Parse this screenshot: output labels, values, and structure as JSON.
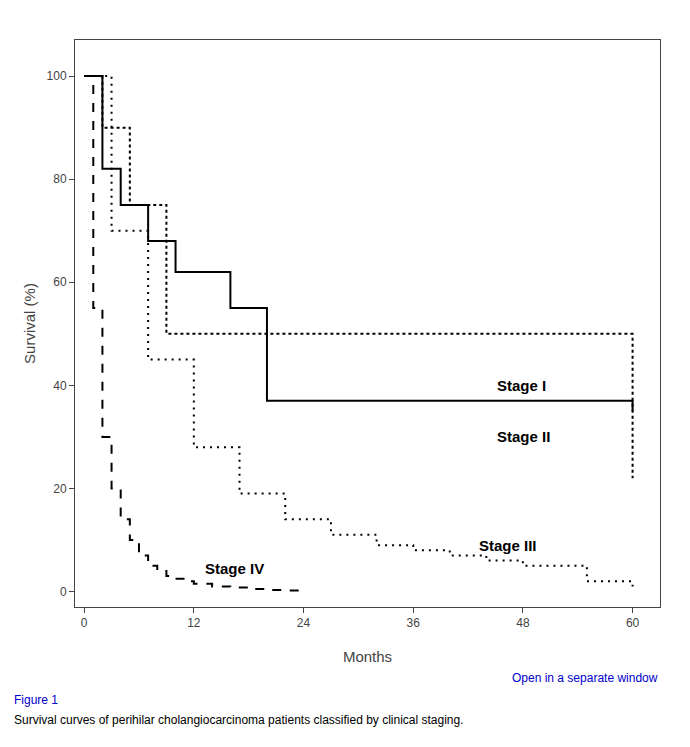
{
  "chart_data": {
    "type": "step",
    "xlabel": "Months",
    "ylabel": "Survival (%)",
    "xlim": [
      -1,
      63
    ],
    "ylim": [
      -3,
      107
    ],
    "xticks": [
      0,
      12,
      24,
      36,
      48,
      60
    ],
    "yticks": [
      0,
      20,
      40,
      60,
      80,
      100
    ],
    "grid": false,
    "series": [
      {
        "x": [
          0,
          2,
          4,
          7,
          10,
          16,
          20,
          44,
          60
        ],
        "values": [
          100,
          82,
          75,
          68,
          62,
          55,
          37,
          37,
          35
        ],
        "color": "#000000",
        "line_style": "solid"
      },
      {
        "x": [
          0,
          2,
          5,
          9,
          19,
          44,
          60
        ],
        "values": [
          100,
          90,
          75,
          50,
          50,
          50,
          22
        ],
        "color": "#000000",
        "line_style": "dotted"
      },
      {
        "x": [
          0,
          3,
          7,
          12,
          17,
          22,
          27,
          32,
          36,
          40,
          44,
          48,
          55,
          60
        ],
        "values": [
          100,
          70,
          45,
          28,
          19,
          14,
          11,
          9,
          8,
          7,
          6,
          5,
          2,
          1
        ],
        "color": "#000000",
        "line_style": "loosely dotted"
      },
      {
        "x": [
          0,
          1,
          2,
          3,
          4,
          5,
          6,
          7,
          8,
          9,
          10,
          11,
          12,
          14,
          16,
          18,
          20,
          22,
          24
        ],
        "values": [
          100,
          55,
          30,
          20,
          14,
          10,
          7,
          5,
          4,
          3,
          2.5,
          2,
          1.5,
          1,
          0.8,
          0.5,
          0.3,
          0.2,
          0
        ],
        "color": "#000000",
        "line_style": "dashed"
      }
    ],
    "annotations": [
      {
        "text": "Stage I",
        "x": 45,
        "y": 40
      },
      {
        "text": "Stage II",
        "x": 45,
        "y": 30
      },
      {
        "text": "Stage III",
        "x": 43,
        "y": 9
      },
      {
        "text": "Stage IV",
        "x": 13,
        "y": 4.5
      }
    ],
    "captions": [
      {
        "text": "Open in a separate window",
        "color": "#0000cc"
      },
      {
        "text": "Figure 1",
        "color": "#0000cc"
      },
      {
        "text": "Survival curves of perihilar cholangiocarcinoma patients classified by clinical staging.",
        "color": "#000000"
      }
    ]
  }
}
